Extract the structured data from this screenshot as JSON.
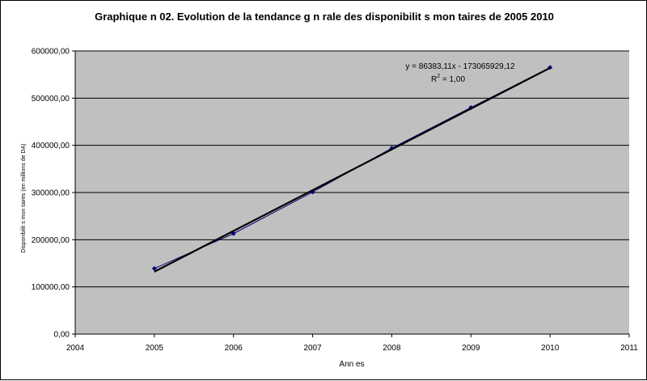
{
  "chart_data": {
    "type": "scatter",
    "title": "Graphique n 02. Evolution de la tendance g  n  rale des disponibilit  s mon  taires de 2005     2010",
    "xlabel": "Ann  es",
    "ylabel": "Disponibilit  s mon  taires (en millions de DA)",
    "xlim": [
      2004,
      2011
    ],
    "ylim": [
      0,
      600000
    ],
    "x_ticks": [
      2004,
      2005,
      2006,
      2007,
      2008,
      2009,
      2010,
      2011
    ],
    "x_tick_labels": [
      "2004",
      "2005",
      "2006",
      "2007",
      "2008",
      "2009",
      "2010",
      "2011"
    ],
    "y_ticks": [
      0,
      100000,
      200000,
      300000,
      400000,
      500000,
      600000
    ],
    "y_tick_labels": [
      "0,00",
      "100000,00",
      "200000,00",
      "300000,00",
      "400000,00",
      "500000,00",
      "600000,00"
    ],
    "grid": "horizontal",
    "series": [
      {
        "x": [
          2005,
          2006,
          2007,
          2008,
          2009,
          2010
        ],
        "y": [
          139000,
          213000,
          301000,
          394000,
          480000,
          565000
        ],
        "color": "#000080",
        "marker": "diamond"
      }
    ],
    "trendline": {
      "type": "linear",
      "slope": 86383.11,
      "intercept": -173065929.12,
      "color": "#000000",
      "x_range": [
        2005,
        2010
      ],
      "equation_text": "y = 86383,11x - 173065929,12",
      "r2_label": "R",
      "r2_sup": "2",
      "r2_value": " = 1,00"
    },
    "plot_background": "#c0c0c0",
    "grid_color": "#000000"
  }
}
